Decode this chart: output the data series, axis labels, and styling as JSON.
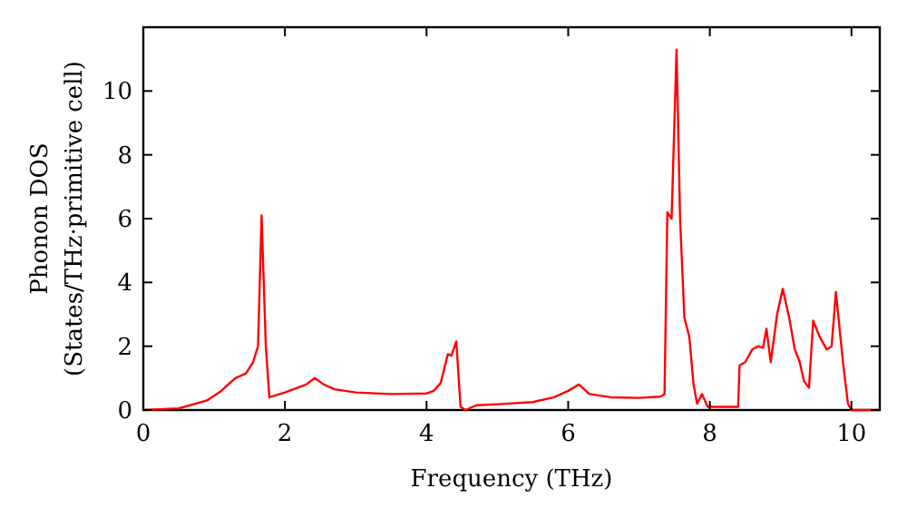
{
  "chart_data": {
    "type": "line",
    "xlabel": "Frequency (THz)",
    "ylabel": "Phonon DOS\n(States/THz·primitive cell)",
    "xlim": [
      0,
      10.4
    ],
    "ylim": [
      0,
      12
    ],
    "xticks": [
      0,
      2,
      4,
      6,
      8,
      10
    ],
    "yticks": [
      0,
      2,
      4,
      6,
      8,
      10
    ],
    "grid": false,
    "marker": "none",
    "line_style": "solid",
    "series": [
      {
        "color": "#ff0000",
        "x": [
          0,
          0.5,
          0.9,
          1.1,
          1.3,
          1.45,
          1.55,
          1.62,
          1.67,
          1.73,
          1.78,
          2.0,
          2.3,
          2.42,
          2.55,
          2.7,
          3.0,
          3.5,
          4.0,
          4.1,
          4.2,
          4.3,
          4.35,
          4.42,
          4.48,
          4.55,
          4.7,
          5.0,
          5.5,
          5.8,
          6.0,
          6.15,
          6.3,
          6.6,
          7.0,
          7.3,
          7.36,
          7.4,
          7.46,
          7.53,
          7.58,
          7.64,
          7.71,
          7.77,
          7.82,
          7.89,
          7.97,
          8.4,
          8.42,
          8.5,
          8.6,
          8.68,
          8.75,
          8.8,
          8.86,
          8.95,
          9.03,
          9.12,
          9.2,
          9.27,
          9.33,
          9.4,
          9.46,
          9.55,
          9.65,
          9.72,
          9.78,
          9.88,
          9.95,
          10.0,
          10.4
        ],
        "values": [
          0,
          0.05,
          0.3,
          0.6,
          1.0,
          1.15,
          1.5,
          2.0,
          6.1,
          2.0,
          0.4,
          0.55,
          0.8,
          1.0,
          0.8,
          0.65,
          0.55,
          0.5,
          0.52,
          0.6,
          0.85,
          1.75,
          1.7,
          2.15,
          0.1,
          0,
          0.15,
          0.18,
          0.25,
          0.4,
          0.6,
          0.8,
          0.5,
          0.4,
          0.38,
          0.42,
          0.5,
          6.2,
          6.0,
          11.3,
          6.0,
          2.9,
          2.3,
          0.8,
          0.2,
          0.5,
          0.1,
          0.1,
          1.4,
          1.5,
          1.9,
          2.0,
          1.95,
          2.55,
          1.5,
          3.0,
          3.8,
          2.9,
          1.9,
          1.5,
          0.9,
          0.7,
          2.8,
          2.3,
          1.9,
          2.0,
          3.7,
          1.5,
          0.2,
          0,
          0
        ]
      }
    ]
  }
}
